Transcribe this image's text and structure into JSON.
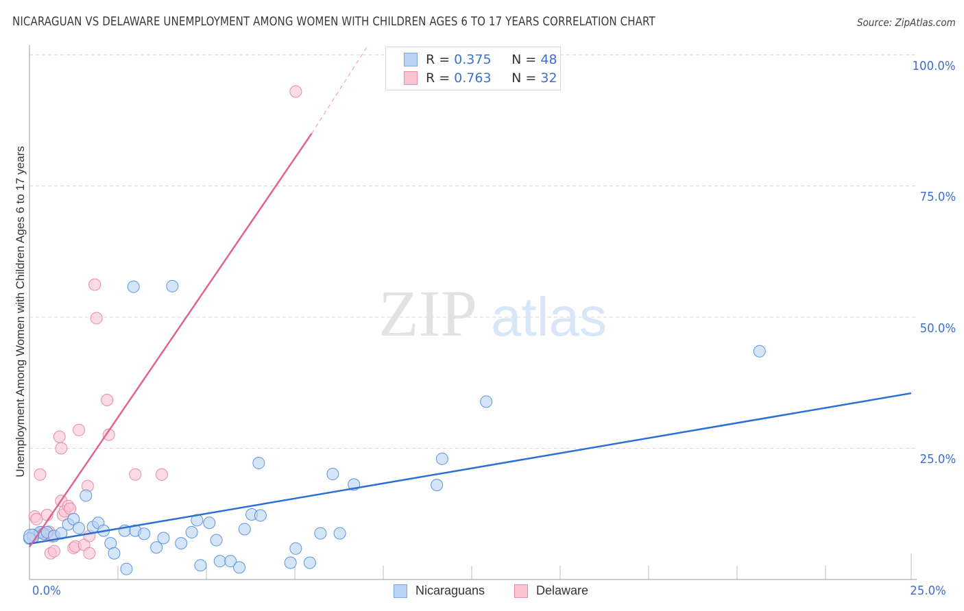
{
  "header": {
    "title": "NICARAGUAN VS DELAWARE UNEMPLOYMENT AMONG WOMEN WITH CHILDREN AGES 6 TO 17 YEARS CORRELATION CHART",
    "source": "Source: ZipAtlas.com"
  },
  "watermark": {
    "zip": "ZIP",
    "atlas": "atlas"
  },
  "legend": {
    "rows": [
      {
        "r_label": "R = ",
        "r_value": "0.375",
        "n_label": "N = ",
        "n_value": "48"
      },
      {
        "r_label": "R = ",
        "r_value": "0.763",
        "n_label": "N = ",
        "n_value": "32"
      }
    ],
    "bottom": [
      "Nicaraguans",
      "Delaware"
    ]
  },
  "colors": {
    "blue_fill": "#b8d3f4",
    "blue_stroke": "#5b93e0",
    "blue_line": "#2a6fd6",
    "pink_fill": "#f9c3d3",
    "pink_stroke": "#e88aa8",
    "pink_line": "#e0628f",
    "tick_text": "#3d6fcc"
  },
  "axes": {
    "y_label": "Unemployment Among Women with Children Ages 6 to 17 years",
    "y_ticks": [
      "100.0%",
      "75.0%",
      "50.0%",
      "25.0%"
    ],
    "x_ticks": [
      "0.0%",
      "25.0%"
    ]
  },
  "chart_data": {
    "type": "scatter",
    "title": "Nicaraguan vs Delaware Unemployment Among Women with Children Ages 6 to 17 years Correlation Chart",
    "xlabel": "",
    "ylabel": "Unemployment Among Women with Children Ages 6 to 17 years",
    "xlim": [
      0,
      25
    ],
    "ylim": [
      0,
      100
    ],
    "grid": "horizontal dashed",
    "legend_position": "top-center and bottom",
    "series": [
      {
        "name": "Nicaraguans",
        "r": 0.375,
        "n": 48,
        "trend": {
          "x": [
            0,
            25
          ],
          "y": [
            6.8,
            35.5
          ]
        },
        "points": [
          [
            0.1,
            8.5
          ],
          [
            0.3,
            9.0
          ],
          [
            0.4,
            8.7
          ],
          [
            0.5,
            9.0
          ],
          [
            0.7,
            8.3
          ],
          [
            0.9,
            8.8
          ],
          [
            1.1,
            10.5
          ],
          [
            1.25,
            11.5
          ],
          [
            1.4,
            9.8
          ],
          [
            1.6,
            16.0
          ],
          [
            1.8,
            10.0
          ],
          [
            1.95,
            10.8
          ],
          [
            2.1,
            9.3
          ],
          [
            2.3,
            6.9
          ],
          [
            2.4,
            5.0
          ],
          [
            2.7,
            9.3
          ],
          [
            2.75,
            2.0
          ],
          [
            2.95,
            55.8
          ],
          [
            3.0,
            9.3
          ],
          [
            3.25,
            8.7
          ],
          [
            3.6,
            6.1
          ],
          [
            3.8,
            7.9
          ],
          [
            4.05,
            55.9
          ],
          [
            4.3,
            6.9
          ],
          [
            4.6,
            9.0
          ],
          [
            4.75,
            11.3
          ],
          [
            4.85,
            2.7
          ],
          [
            5.1,
            10.8
          ],
          [
            5.3,
            7.5
          ],
          [
            5.4,
            3.5
          ],
          [
            5.7,
            3.5
          ],
          [
            5.95,
            2.3
          ],
          [
            6.1,
            9.6
          ],
          [
            6.3,
            12.4
          ],
          [
            6.55,
            12.2
          ],
          [
            6.5,
            22.2
          ],
          [
            7.4,
            3.2
          ],
          [
            7.55,
            5.9
          ],
          [
            7.95,
            3.2
          ],
          [
            8.25,
            8.8
          ],
          [
            8.6,
            20.1
          ],
          [
            8.8,
            8.8
          ],
          [
            9.2,
            18.1
          ],
          [
            11.55,
            18.0
          ],
          [
            11.7,
            23.0
          ],
          [
            12.95,
            33.9
          ],
          [
            20.7,
            43.5
          ],
          [
            0.0,
            7.8
          ]
        ]
      },
      {
        "name": "Delaware",
        "r": 0.763,
        "n": 32,
        "trend": {
          "x": [
            0,
            8.0
          ],
          "y": [
            6.2,
            85.0
          ],
          "dashed_to": [
            9.6,
            100.0
          ]
        },
        "points": [
          [
            0.1,
            8.0
          ],
          [
            0.15,
            12.0
          ],
          [
            0.3,
            20.0
          ],
          [
            0.35,
            9.0
          ],
          [
            0.45,
            8.7
          ],
          [
            0.5,
            12.3
          ],
          [
            0.55,
            9.1
          ],
          [
            0.6,
            5.0
          ],
          [
            0.65,
            8.2
          ],
          [
            0.7,
            5.4
          ],
          [
            0.9,
            15.0
          ],
          [
            0.85,
            27.2
          ],
          [
            0.9,
            25.0
          ],
          [
            0.95,
            12.3
          ],
          [
            1.0,
            13.0
          ],
          [
            1.1,
            14.0
          ],
          [
            1.15,
            13.5
          ],
          [
            1.25,
            6.0
          ],
          [
            1.3,
            6.3
          ],
          [
            1.4,
            28.5
          ],
          [
            1.55,
            6.6
          ],
          [
            1.65,
            17.8
          ],
          [
            1.7,
            5.0
          ],
          [
            1.7,
            8.3
          ],
          [
            1.85,
            56.2
          ],
          [
            1.9,
            49.8
          ],
          [
            2.2,
            34.2
          ],
          [
            2.25,
            27.6
          ],
          [
            3.0,
            20.0
          ],
          [
            3.75,
            20.0
          ],
          [
            7.55,
            93.0
          ],
          [
            0.2,
            11.5
          ]
        ]
      }
    ]
  }
}
